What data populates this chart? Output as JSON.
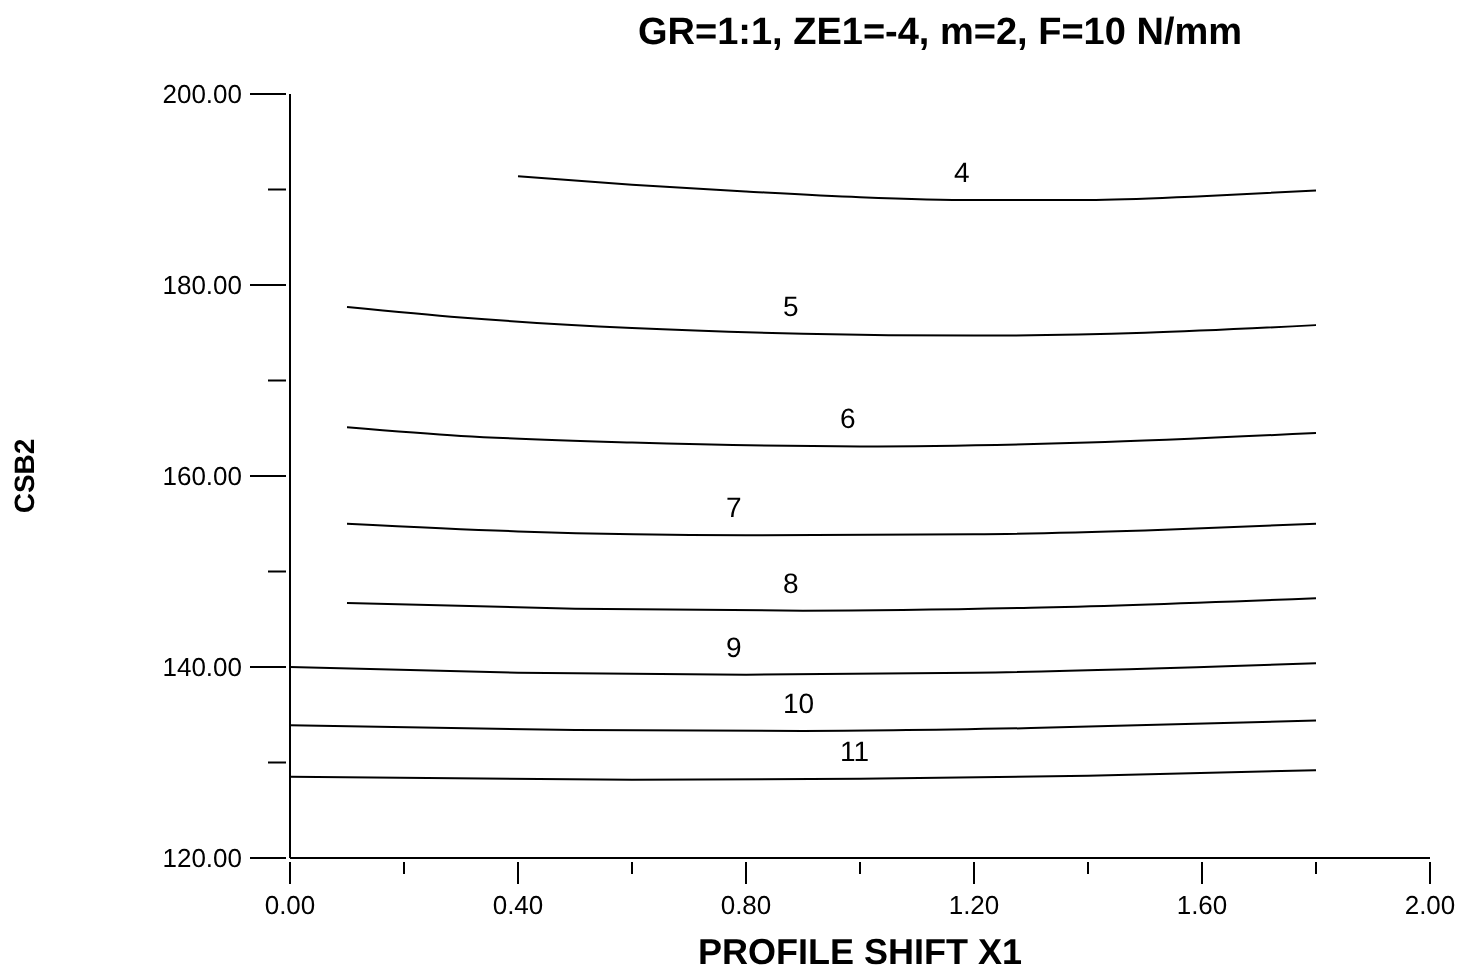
{
  "chart_data": {
    "type": "line",
    "title": "GR=1:1, ZE1=-4, m=2, F=10 N/mm",
    "xlabel": "PROFILE SHIFT X1",
    "ylabel": "CSB2",
    "xlim": [
      0,
      2
    ],
    "ylim": [
      120,
      200
    ],
    "xticks": [
      {
        "value": 0,
        "label": "0.00"
      },
      {
        "value": 0.2,
        "label": null
      },
      {
        "value": 0.4,
        "label": "0.40"
      },
      {
        "value": 0.6,
        "label": null
      },
      {
        "value": 0.8,
        "label": "0.80"
      },
      {
        "value": 1.0,
        "label": null
      },
      {
        "value": 1.2,
        "label": "1.20"
      },
      {
        "value": 1.4,
        "label": null
      },
      {
        "value": 1.6,
        "label": "1.60"
      },
      {
        "value": 1.8,
        "label": null
      },
      {
        "value": 2.0,
        "label": "2.00"
      }
    ],
    "yticks": [
      {
        "value": 120,
        "label": "120.00"
      },
      {
        "value": 130,
        "label": null
      },
      {
        "value": 140,
        "label": "140.00"
      },
      {
        "value": 150,
        "label": null
      },
      {
        "value": 160,
        "label": "160.00"
      },
      {
        "value": 170,
        "label": null
      },
      {
        "value": 180,
        "label": "180.00"
      },
      {
        "value": 190,
        "label": null
      },
      {
        "value": 200,
        "label": "200.00"
      }
    ],
    "grid": false,
    "legend": false,
    "marker": "none",
    "line_style": "solid",
    "series": [
      {
        "name": "4",
        "color": "#000000",
        "x": [
          0.4,
          0.6,
          0.8,
          1.0,
          1.2,
          1.4,
          1.6,
          1.8
        ],
        "values": [
          191.4,
          190.5,
          189.8,
          189.2,
          188.9,
          188.9,
          189.3,
          189.9
        ]
      },
      {
        "name": "5",
        "color": "#000000",
        "x": [
          0.1,
          0.3,
          0.6,
          0.9,
          1.2,
          1.5,
          1.8
        ],
        "values": [
          177.7,
          176.6,
          175.5,
          174.9,
          174.7,
          175.0,
          175.8
        ]
      },
      {
        "name": "6",
        "color": "#000000",
        "x": [
          0.1,
          0.3,
          0.6,
          1.0,
          1.4,
          1.8
        ],
        "values": [
          165.1,
          164.2,
          163.5,
          163.1,
          163.5,
          164.5
        ]
      },
      {
        "name": "7",
        "color": "#000000",
        "x": [
          0.1,
          0.4,
          0.8,
          1.2,
          1.5,
          1.8
        ],
        "values": [
          155.0,
          154.2,
          153.8,
          153.9,
          154.3,
          155.0
        ]
      },
      {
        "name": "8",
        "color": "#000000",
        "x": [
          0.1,
          0.5,
          0.9,
          1.3,
          1.8
        ],
        "values": [
          146.7,
          146.1,
          145.9,
          146.2,
          147.2
        ]
      },
      {
        "name": "9",
        "color": "#000000",
        "x": [
          0,
          0.4,
          0.8,
          1.2,
          1.8
        ],
        "values": [
          140.0,
          139.4,
          139.2,
          139.4,
          140.4
        ]
      },
      {
        "name": "10",
        "color": "#000000",
        "x": [
          0,
          0.5,
          0.9,
          1.3,
          1.8
        ],
        "values": [
          133.9,
          133.4,
          133.3,
          133.6,
          134.4
        ]
      },
      {
        "name": "11",
        "color": "#000000",
        "x": [
          0,
          0.6,
          1.0,
          1.4,
          1.8
        ],
        "values": [
          128.5,
          128.2,
          128.3,
          128.6,
          129.2
        ]
      }
    ]
  }
}
